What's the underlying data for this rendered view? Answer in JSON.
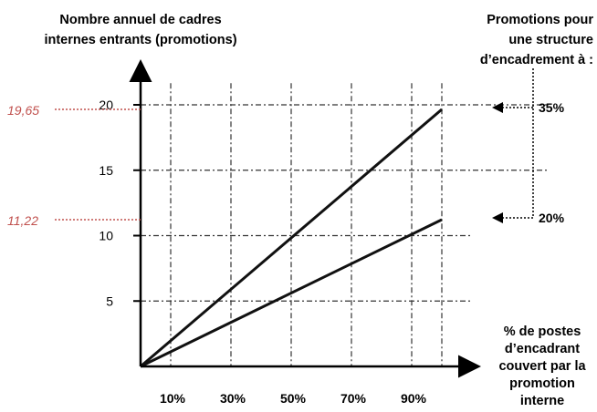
{
  "chart_data": {
    "type": "line",
    "title_lines": [
      "Nombre annuel de cadres",
      "internes entrants (promotions)"
    ],
    "xlabel_lines": [
      "% de postes",
      "d’encadrant",
      "couvert par la",
      "promotion",
      "interne"
    ],
    "legend_title_lines": [
      "Promotions pour",
      "une structure",
      "d’encadrement à :"
    ],
    "x_ticks": [
      "10%",
      "30%",
      "50%",
      "70%",
      "90%"
    ],
    "y_ticks": [
      "5",
      "10",
      "15",
      "20"
    ],
    "ylim": [
      0,
      22
    ],
    "xlim": [
      0,
      100
    ],
    "grid": true,
    "series": [
      {
        "name": "35%",
        "x": [
          0,
          100
        ],
        "y": [
          0,
          19.65
        ]
      },
      {
        "name": "20%",
        "x": [
          0,
          100
        ],
        "y": [
          0,
          11.22
        ]
      }
    ],
    "annotations": [
      {
        "text": "19,65",
        "value": 19.65,
        "color": "#c0504d"
      },
      {
        "text": "11,22",
        "value": 11.22,
        "color": "#c0504d"
      }
    ]
  }
}
